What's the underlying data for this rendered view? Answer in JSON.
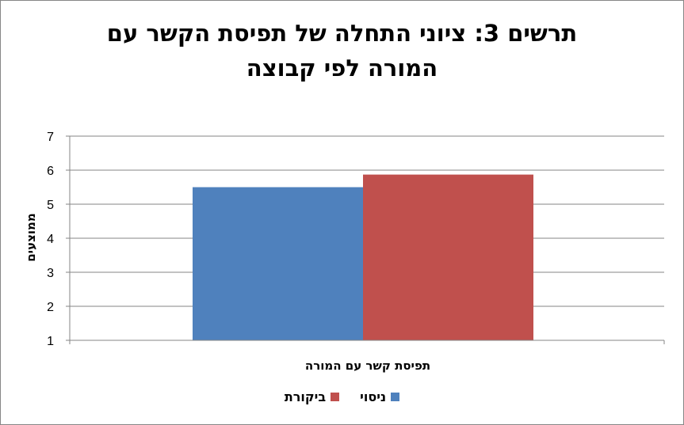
{
  "chart_data": {
    "type": "bar",
    "title_line1": "תרשים 3: ציוני התחלה של תפיסת הקשר עם",
    "title_line2": "המורה לפי קבוצה",
    "xlabel": "תפיסת קשר עם המורה",
    "ylabel": "ממוצעים",
    "categories": [
      "תפיסת קשר עם המורה"
    ],
    "series": [
      {
        "name": "ניסוי",
        "color": "#4F81BD",
        "values": [
          5.5
        ]
      },
      {
        "name": "ביקורת",
        "color": "#C0504D",
        "values": [
          5.87
        ]
      }
    ],
    "ylim": [
      1,
      7
    ],
    "yticks": [
      "1",
      "2",
      "3",
      "4",
      "5",
      "6",
      "7"
    ],
    "grid": true,
    "legend_position": "bottom"
  }
}
